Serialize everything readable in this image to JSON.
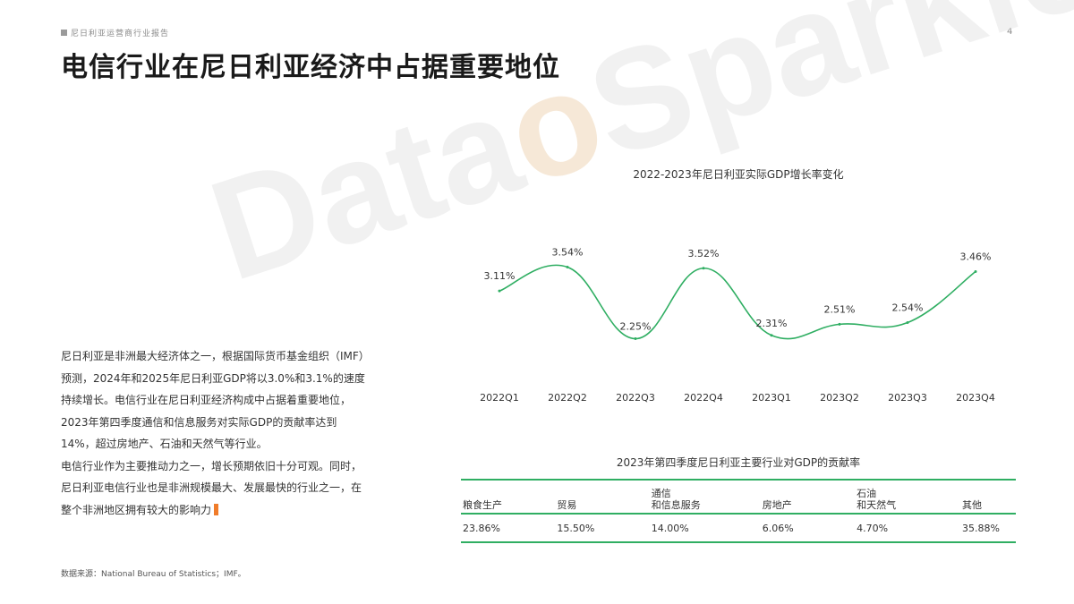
{
  "header": {
    "report_label": "尼日利亚运营商行业报告",
    "page_number": "4",
    "title": "电信行业在尼日利亚经济中占据重要地位"
  },
  "watermark": {
    "text_before": "Data",
    "text_o": "o",
    "text_after": "Sparkle"
  },
  "body": {
    "paragraph1": "尼日利亚是非洲最大经济体之一，根据国际货币基金组织（IMF）预测，2024年和2025年尼日利亚GDP将以3.0%和3.1%的速度持续增长。电信行业在尼日利亚经济构成中占据着重要地位，2023年第四季度通信和信息服务对实际GDP的贡献率达到14%，超过房地产、石油和天然气等行业。",
    "paragraph2": "电信行业作为主要推动力之一，增长预期依旧十分可观。同时，尼日利亚电信行业也是非洲规模最大、发展最快的行业之一，在整个非洲地区拥有较大的影响力",
    "source": "数据来源：National Bureau of Statistics；IMF。"
  },
  "colors": {
    "accent_green": "#2fae62",
    "accent_orange": "#f07c2a",
    "watermark_gray": "#e6e6e6"
  },
  "chart_data": {
    "type": "line",
    "title": "2022-2023年尼日利亚实际GDP增长率变化",
    "categories": [
      "2022Q1",
      "2022Q2",
      "2022Q3",
      "2022Q4",
      "2023Q1",
      "2023Q2",
      "2023Q3",
      "2023Q4"
    ],
    "values": [
      3.11,
      3.54,
      2.25,
      3.52,
      2.31,
      2.51,
      2.54,
      3.46
    ],
    "data_labels": [
      "3.11%",
      "3.54%",
      "2.25%",
      "3.52%",
      "2.31%",
      "2.51%",
      "2.54%",
      "3.46%"
    ],
    "unit": "%",
    "smooth": true,
    "grid": false,
    "color": "#2fae62"
  },
  "table": {
    "title": "2023年第四季度尼日利亚主要行业对GDP的贡献率",
    "headers": [
      {
        "line1": "",
        "line2": "粮食生产"
      },
      {
        "line1": "",
        "line2": "贸易"
      },
      {
        "line1": "通信",
        "line2": "和信息服务"
      },
      {
        "line1": "",
        "line2": "房地产"
      },
      {
        "line1": "石油",
        "line2": "和天然气"
      },
      {
        "line1": "",
        "line2": "其他"
      }
    ],
    "values": [
      "23.86%",
      "15.50%",
      "14.00%",
      "6.06%",
      "4.70%",
      "35.88%"
    ]
  }
}
